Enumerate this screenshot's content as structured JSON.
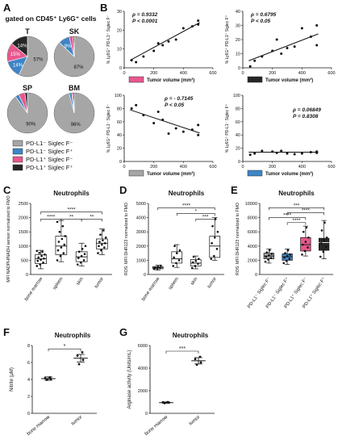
{
  "panels": {
    "A": "A",
    "B": "B",
    "C": "C",
    "D": "D",
    "E": "E",
    "F": "F",
    "G": "G"
  },
  "panel_a": {
    "header": "gated on CD45⁺ Ly6G⁺ cells",
    "pies": [
      {
        "label": "T",
        "slices": [
          {
            "name": "PD-L1⁻ Siglec F⁻",
            "value": 57,
            "color": "#a6a6a6",
            "text": "57%"
          },
          {
            "name": "PD-L1⁻ Siglec F⁺",
            "value": 14,
            "color": "#3d85c6",
            "text": "14%"
          },
          {
            "name": "PD-L1⁺ Siglec F⁻",
            "value": 15,
            "color": "#e8578f",
            "text": "15%"
          },
          {
            "name": "PD-L1⁺ Siglec F⁺",
            "value": 14,
            "color": "#262626",
            "text": "14%"
          }
        ]
      },
      {
        "label": "SK",
        "slices": [
          {
            "name": "PD-L1⁻ Siglec F⁻",
            "value": 87,
            "color": "#a6a6a6",
            "text": "87%"
          },
          {
            "name": "PD-L1⁻ Siglec F⁺",
            "value": 9,
            "color": "#3d85c6",
            "text": "9%"
          },
          {
            "name": "PD-L1⁺ Siglec F⁻",
            "value": 3,
            "color": "#e8578f",
            "text": ""
          },
          {
            "name": "PD-L1⁺ Siglec F⁺",
            "value": 1,
            "color": "#262626",
            "text": ""
          }
        ]
      },
      {
        "label": "SP",
        "slices": [
          {
            "name": "PD-L1⁻ Siglec F⁻",
            "value": 90,
            "color": "#a6a6a6",
            "text": "90%"
          },
          {
            "name": "PD-L1⁻ Siglec F⁺",
            "value": 3,
            "color": "#3d85c6",
            "text": ""
          },
          {
            "name": "PD-L1⁺ Siglec F⁻",
            "value": 5,
            "color": "#e8578f",
            "text": ""
          },
          {
            "name": "PD-L1⁺ Siglec F⁺",
            "value": 2,
            "color": "#262626",
            "text": ""
          }
        ]
      },
      {
        "label": "BM",
        "slices": [
          {
            "name": "PD-L1⁻ Siglec F⁻",
            "value": 96,
            "color": "#a6a6a6",
            "text": "96%"
          },
          {
            "name": "PD-L1⁻ Siglec F⁺",
            "value": 2,
            "color": "#3d85c6",
            "text": ""
          },
          {
            "name": "PD-L1⁺ Siglec F⁻",
            "value": 1,
            "color": "#e8578f",
            "text": ""
          },
          {
            "name": "PD-L1⁺ Siglec F⁺",
            "value": 1,
            "color": "#262626",
            "text": ""
          }
        ]
      }
    ],
    "legend": [
      {
        "label": "PD-L1⁻ Siglec F⁻",
        "color": "#a6a6a6"
      },
      {
        "label": "PD-L1⁻ Siglec F⁺",
        "color": "#3d85c6"
      },
      {
        "label": "PD-L1⁺ Siglec F⁻",
        "color": "#e8578f"
      },
      {
        "label": "PD-L1⁺ Siglec F⁺",
        "color": "#262626"
      }
    ]
  },
  "chart_data": [
    {
      "panel": "B1",
      "type": "scatter",
      "ylabel": "% Ly6G⁺ PD-L1⁺ Siglec F⁻",
      "xlabel": "Tumor volume (mm³)",
      "legend_color": "#e8578f",
      "stat1": "ρ = 0.9332",
      "stat2": "P < 0.0001",
      "xlim": [
        0,
        600
      ],
      "ylim": [
        0,
        30
      ],
      "xticks": [
        0,
        200,
        400,
        600
      ],
      "yticks": [
        0,
        10,
        20,
        30
      ],
      "points": [
        [
          50,
          4
        ],
        [
          80,
          3
        ],
        [
          130,
          6
        ],
        [
          200,
          9
        ],
        [
          230,
          13
        ],
        [
          260,
          12
        ],
        [
          300,
          14
        ],
        [
          350,
          15
        ],
        [
          400,
          21
        ],
        [
          460,
          22
        ],
        [
          500,
          25
        ],
        [
          500,
          23
        ]
      ],
      "fit": [
        [
          40,
          4
        ],
        [
          510,
          24
        ]
      ]
    },
    {
      "panel": "B2",
      "type": "scatter",
      "ylabel": "% Ly6G⁺ PD-L1⁺ Siglec F⁺",
      "xlabel": "Tumor volume (mm³)",
      "legend_color": "#262626",
      "stat1": "ρ = 0.6795",
      "stat2": "P < 0.05",
      "xlim": [
        0,
        600
      ],
      "ylim": [
        0,
        40
      ],
      "xticks": [
        0,
        200,
        400,
        600
      ],
      "yticks": [
        0,
        10,
        20,
        30,
        40
      ],
      "points": [
        [
          50,
          1
        ],
        [
          80,
          5
        ],
        [
          130,
          8
        ],
        [
          200,
          12
        ],
        [
          230,
          20
        ],
        [
          260,
          10
        ],
        [
          300,
          14
        ],
        [
          350,
          15
        ],
        [
          400,
          28
        ],
        [
          460,
          22
        ],
        [
          500,
          30
        ],
        [
          500,
          16
        ]
      ],
      "fit": [
        [
          40,
          5
        ],
        [
          510,
          24
        ]
      ]
    },
    {
      "panel": "B3",
      "type": "scatter",
      "ylabel": "% Ly6G⁺ PD-L1⁻ Siglec F⁻",
      "xlabel": "Tumor volume (mm³)",
      "legend_color": "#a6a6a6",
      "stat1": "ρ = - 0.7145",
      "stat2": "P < 0.05",
      "xlim": [
        0,
        600
      ],
      "ylim": [
        0,
        100
      ],
      "xticks": [
        0,
        200,
        400,
        600
      ],
      "yticks": [
        0,
        20,
        40,
        60,
        80,
        100
      ],
      "points": [
        [
          50,
          80
        ],
        [
          80,
          85
        ],
        [
          130,
          70
        ],
        [
          200,
          58
        ],
        [
          230,
          75
        ],
        [
          260,
          63
        ],
        [
          300,
          42
        ],
        [
          350,
          50
        ],
        [
          400,
          45
        ],
        [
          460,
          48
        ],
        [
          500,
          40
        ],
        [
          500,
          55
        ]
      ],
      "fit": [
        [
          40,
          78
        ],
        [
          510,
          43
        ]
      ]
    },
    {
      "panel": "B4",
      "type": "scatter",
      "ylabel": "% Ly6G⁺ PD-L1⁻ Siglec F⁺",
      "xlabel": "Tumor volume (mm³)",
      "legend_color": "#3d85c6",
      "stat1": "ρ = 0.06849",
      "stat2": "P = 0.8308",
      "xlim": [
        0,
        600
      ],
      "ylim": [
        0,
        100
      ],
      "xticks": [
        0,
        200,
        400,
        600
      ],
      "yticks": [
        0,
        20,
        40,
        60,
        80,
        100
      ],
      "points": [
        [
          50,
          10
        ],
        [
          80,
          12
        ],
        [
          130,
          16
        ],
        [
          200,
          15
        ],
        [
          230,
          13
        ],
        [
          260,
          16
        ],
        [
          300,
          12
        ],
        [
          350,
          11
        ],
        [
          400,
          12
        ],
        [
          460,
          14
        ],
        [
          500,
          13
        ],
        [
          500,
          15
        ]
      ],
      "fit": [
        [
          40,
          14
        ],
        [
          510,
          14
        ]
      ]
    },
    {
      "panel": "C",
      "type": "box",
      "title": "Neutrophils",
      "ylabel": "MFI NADPH/NADH sensor normalized to FMO",
      "categories": [
        "bone marrow",
        "spleen",
        "skin",
        "tumor"
      ],
      "ylim": [
        0,
        2500
      ],
      "yticks": [
        0,
        500,
        1000,
        1500,
        2000,
        2500
      ],
      "boxes": [
        {
          "min": 200,
          "q1": 380,
          "med": 550,
          "q3": 700,
          "max": 850,
          "fill": "#ffffff",
          "points": [
            300,
            350,
            420,
            480,
            520,
            560,
            600,
            650,
            700,
            760,
            800,
            830
          ]
        },
        {
          "min": 450,
          "q1": 700,
          "med": 1000,
          "q3": 1350,
          "max": 1900,
          "fill": "#ffffff",
          "points": [
            500,
            650,
            750,
            850,
            950,
            1050,
            1150,
            1250,
            1350,
            1500,
            1700,
            1850
          ]
        },
        {
          "min": 300,
          "q1": 450,
          "med": 620,
          "q3": 800,
          "max": 1100,
          "fill": "#ffffff",
          "points": [
            350,
            420,
            500,
            580,
            650,
            720,
            800,
            900,
            1000
          ]
        },
        {
          "min": 700,
          "q1": 900,
          "med": 1100,
          "q3": 1250,
          "max": 1600,
          "fill": "#ffffff",
          "points": [
            750,
            850,
            950,
            1000,
            1050,
            1100,
            1150,
            1200,
            1300,
            1400,
            1550
          ]
        }
      ],
      "brackets": [
        {
          "from": 0,
          "to": 3,
          "level": 2200,
          "text": "****"
        },
        {
          "from": 0,
          "to": 1,
          "level": 1950,
          "text": "****"
        },
        {
          "from": 1,
          "to": 2,
          "level": 1950,
          "text": "**"
        },
        {
          "from": 2,
          "to": 3,
          "level": 1950,
          "text": "**"
        }
      ]
    },
    {
      "panel": "D",
      "type": "box",
      "title": "Neutrophils",
      "ylabel": "ROS: MFI DHR123 normalized to FMO",
      "categories": [
        "bone marrow",
        "spleen",
        "skin",
        "tumor"
      ],
      "ylim": [
        0,
        5000
      ],
      "yticks": [
        0,
        1000,
        2000,
        3000,
        4000,
        5000
      ],
      "boxes": [
        {
          "min": 300,
          "q1": 400,
          "med": 470,
          "q3": 550,
          "max": 650,
          "fill": "#ffffff",
          "points": [
            380,
            420,
            460,
            500,
            560,
            620
          ]
        },
        {
          "min": 500,
          "q1": 800,
          "med": 1100,
          "q3": 1600,
          "max": 2100,
          "fill": "#ffffff",
          "points": [
            600,
            800,
            1000,
            1200,
            1500,
            1700,
            2000
          ]
        },
        {
          "min": 400,
          "q1": 600,
          "med": 800,
          "q3": 1050,
          "max": 1300,
          "fill": "#ffffff",
          "points": [
            450,
            600,
            750,
            850,
            950,
            1100,
            1250
          ]
        },
        {
          "min": 1000,
          "q1": 1200,
          "med": 2000,
          "q3": 2700,
          "max": 4000,
          "fill": "#ffffff",
          "points": [
            1100,
            1300,
            1800,
            2200,
            2600,
            3000,
            3400,
            3900
          ]
        }
      ],
      "brackets": [
        {
          "from": 0,
          "to": 3,
          "level": 4700,
          "text": "****"
        },
        {
          "from": 1,
          "to": 3,
          "level": 4300,
          "text": "*"
        },
        {
          "from": 2,
          "to": 3,
          "level": 3900,
          "text": "***"
        }
      ]
    },
    {
      "panel": "E",
      "type": "box",
      "title": "Neutrophils",
      "ylabel": "ROS: MFI DHR123 normalized to FMO",
      "categories": [
        "PD-L1⁻ Siglec F⁻",
        "PD-L1⁻ Siglec F⁺",
        "PD-L1⁺ Siglec F⁻",
        "PD-L1⁺ Siglec F⁺"
      ],
      "ylim": [
        0,
        10000
      ],
      "yticks": [
        0,
        2000,
        4000,
        6000,
        8000,
        10000
      ],
      "boxes": [
        {
          "min": 1600,
          "q1": 2200,
          "med": 2600,
          "q3": 3000,
          "max": 3600,
          "fill": "#a6a6a6",
          "points": [
            1800,
            2100,
            2300,
            2500,
            2700,
            2900,
            3100,
            3400
          ]
        },
        {
          "min": 1400,
          "q1": 2000,
          "med": 2500,
          "q3": 2900,
          "max": 3600,
          "fill": "#3d85c6",
          "points": [
            1600,
            1900,
            2200,
            2400,
            2600,
            2800,
            3000,
            3400
          ]
        },
        {
          "min": 2600,
          "q1": 3300,
          "med": 4200,
          "q3": 5200,
          "max": 6800,
          "fill": "#e8578f",
          "points": [
            2800,
            3300,
            3800,
            4200,
            4600,
            5200,
            6000,
            6600
          ]
        },
        {
          "min": 2200,
          "q1": 3400,
          "med": 4500,
          "q3": 5100,
          "max": 7600,
          "fill": "#262626",
          "points": [
            2500,
            3200,
            3900,
            4400,
            4800,
            5200,
            6200,
            7300
          ]
        }
      ],
      "brackets": [
        {
          "from": 0,
          "to": 3,
          "level": 9400,
          "text": "***"
        },
        {
          "from": 1,
          "to": 3,
          "level": 8700,
          "text": "****"
        },
        {
          "from": 0,
          "to": 2,
          "level": 8000,
          "text": "****"
        },
        {
          "from": 1,
          "to": 2,
          "level": 7300,
          "text": "****"
        }
      ]
    },
    {
      "panel": "F",
      "type": "dot",
      "title": "Neutrophils",
      "ylabel": "Nitrite (μM)",
      "categories": [
        "bone marrow",
        "tumor"
      ],
      "ylim": [
        0,
        8
      ],
      "yticks": [
        0,
        2,
        4,
        6,
        8
      ],
      "groups": [
        {
          "mean": 4.1,
          "sem": 0.2,
          "points": [
            3.95,
            4.05,
            4.15,
            4.25
          ]
        },
        {
          "mean": 6.5,
          "sem": 0.45,
          "points": [
            5.8,
            6.3,
            6.8,
            7.2
          ]
        }
      ],
      "brackets": [
        {
          "from": 0,
          "to": 1,
          "level": 7.6,
          "text": "*"
        }
      ]
    },
    {
      "panel": "G",
      "type": "dot",
      "title": "Neutrophils",
      "ylabel": "Arginase activity (Units/mL)",
      "categories": [
        "bone marrow",
        "tumor"
      ],
      "ylim": [
        0,
        6000
      ],
      "yticks": [
        0,
        2000,
        4000,
        6000
      ],
      "groups": [
        {
          "mean": 950,
          "sem": 60,
          "points": [
            900,
            950,
            980,
            1000
          ]
        },
        {
          "mean": 4650,
          "sem": 280,
          "points": [
            4300,
            4500,
            4800,
            5000
          ]
        }
      ],
      "brackets": [
        {
          "from": 0,
          "to": 1,
          "level": 5500,
          "text": "***"
        }
      ]
    }
  ]
}
